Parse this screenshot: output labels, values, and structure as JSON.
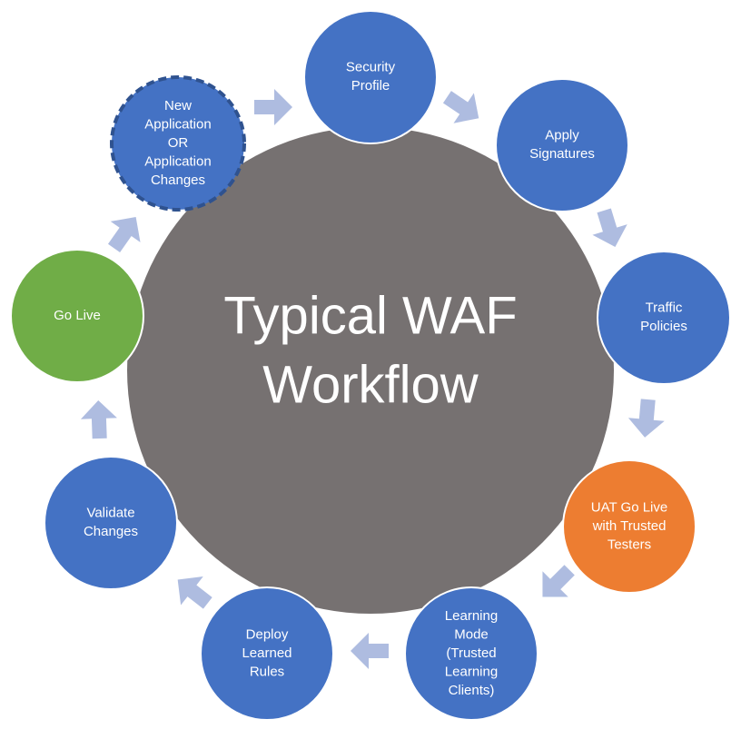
{
  "center": {
    "title_lines": [
      "Typical WAF",
      "Workflow"
    ],
    "color": "#767171"
  },
  "colors": {
    "blue": "#4472C4",
    "green": "#70AD47",
    "orange": "#ED7D31",
    "arrow": "#AEBCE0",
    "node_stroke": "#ffffff"
  },
  "steps": [
    {
      "id": "security-profile",
      "lines": [
        "Security",
        "Profile"
      ],
      "color": "#4472C4",
      "dashed": false
    },
    {
      "id": "apply-signatures",
      "lines": [
        "Apply",
        "Signatures"
      ],
      "color": "#4472C4",
      "dashed": false
    },
    {
      "id": "traffic-policies",
      "lines": [
        "Traffic",
        "Policies"
      ],
      "color": "#4472C4",
      "dashed": false
    },
    {
      "id": "uat-go-live",
      "lines": [
        "UAT Go Live",
        "with Trusted",
        "Testers"
      ],
      "color": "#ED7D31",
      "dashed": false
    },
    {
      "id": "learning-mode",
      "lines": [
        "Learning",
        "Mode",
        "(Trusted",
        "Learning",
        "Clients)"
      ],
      "color": "#4472C4",
      "dashed": false
    },
    {
      "id": "deploy-learned-rules",
      "lines": [
        "Deploy",
        "Learned",
        "Rules"
      ],
      "color": "#4472C4",
      "dashed": false
    },
    {
      "id": "validate-changes",
      "lines": [
        "Validate",
        "Changes"
      ],
      "color": "#4472C4",
      "dashed": false
    },
    {
      "id": "go-live",
      "lines": [
        "Go Live"
      ],
      "color": "#70AD47",
      "dashed": false
    },
    {
      "id": "new-application",
      "lines": [
        "New",
        "Application",
        "OR",
        "Application",
        "Changes"
      ],
      "color": "#4472C4",
      "dashed": true
    }
  ]
}
